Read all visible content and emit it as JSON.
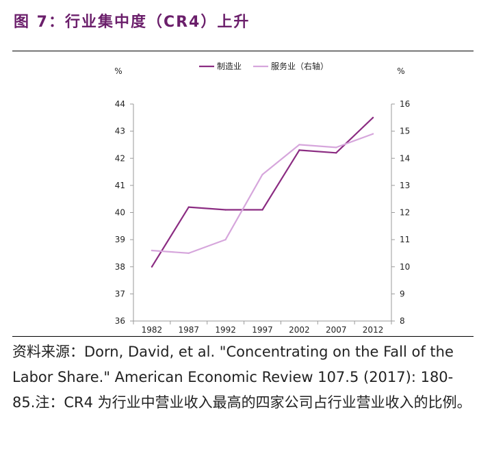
{
  "figure": {
    "title": "图 7：行业集中度（CR4）上升",
    "source_note": "资料来源：Dorn, David, et al. \"Concentrating on the Fall of the Labor Share.\" American Economic Review 107.5 (2017): 180-85.注：CR4 为行业中营业收入最高的四家公司占行业营业收入的比例。"
  },
  "chart_data": {
    "type": "line",
    "title": "",
    "x": [
      "1982",
      "1987",
      "1992",
      "1997",
      "2002",
      "2007",
      "2012"
    ],
    "y_left": {
      "unit": "%",
      "ylim": [
        36,
        44
      ],
      "ticks": [
        "36",
        "37",
        "38",
        "39",
        "40",
        "41",
        "42",
        "43",
        "44"
      ]
    },
    "y_right": {
      "unit": "%",
      "ylim": [
        8,
        16
      ],
      "ticks": [
        "8",
        "9",
        "10",
        "11",
        "12",
        "13",
        "14",
        "15",
        "16"
      ]
    },
    "series": [
      {
        "name": "制造业",
        "axis": "left",
        "color": "#8b2c82",
        "values": [
          38.0,
          40.2,
          40.1,
          40.1,
          42.3,
          42.2,
          43.5
        ]
      },
      {
        "name": "服务业（右轴）",
        "axis": "right",
        "color": "#d6a6dc",
        "values": [
          10.6,
          10.5,
          11.0,
          13.4,
          14.5,
          14.4,
          14.9
        ]
      }
    ],
    "grid": false,
    "legend": "top-center"
  }
}
